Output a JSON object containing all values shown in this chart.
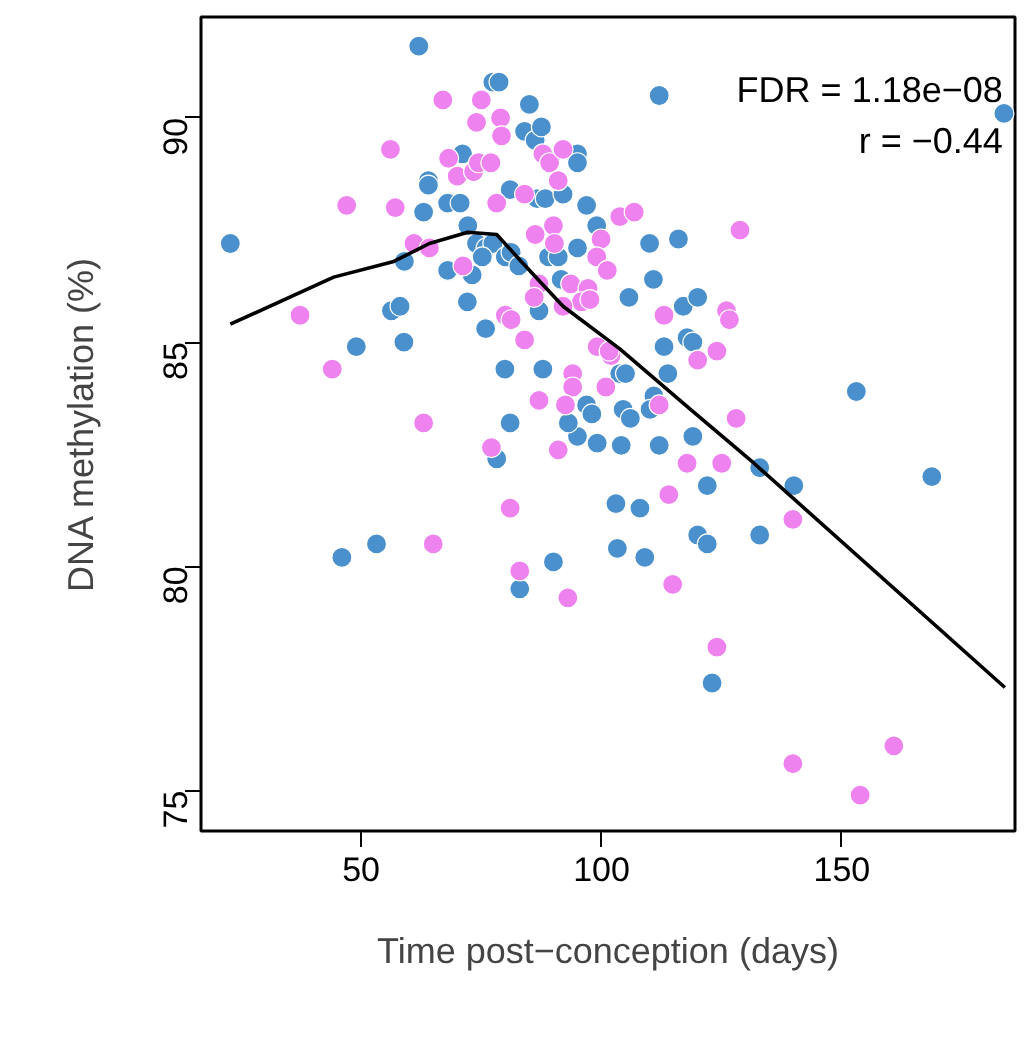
{
  "chart_data": {
    "type": "scatter",
    "xlabel": "Time post−conception (days)",
    "ylabel": "DNA methylation (%)",
    "xlim": [
      16.7,
      186
    ],
    "ylim": [
      74.1,
      92.25
    ],
    "xticks": [
      50,
      100,
      150
    ],
    "yticks": [
      75,
      80,
      85,
      90
    ],
    "grid": false,
    "marker": "circle",
    "annotations": [
      "FDR = 1.18e−08",
      "r = −0.44"
    ],
    "series": [
      {
        "color": "#4a90cc",
        "x": [
          22.8,
          62,
          77.4,
          78.7,
          85,
          84,
          86.2,
          87.5,
          71.1,
          64,
          64,
          63,
          68,
          70.6,
          72.2,
          81,
          86.6,
          88.3,
          92,
          96.9,
          99,
          59,
          74,
          76,
          77.4,
          75.2,
          80,
          81.2,
          82.8,
          89,
          91,
          91.6,
          95,
          56.3,
          58.1,
          49,
          58.9,
          68,
          73.1,
          72.1,
          75.9,
          79.9,
          87.8,
          87,
          81,
          96.9,
          98,
          103.8,
          112,
          183.7,
          95,
          95,
          110,
          116,
          105.7,
          110.8,
          117,
          120,
          113,
          117.8,
          119,
          105,
          113.8,
          153,
          104.5,
          110.9,
          110.1,
          106,
          95,
          99.1,
          104.1,
          112,
          119,
          132.9,
          140,
          168.7,
          122,
          103,
          108,
          120,
          122,
          132.9,
          109,
          123,
          93.1,
          78.2,
          46,
          53.2,
          90,
          83,
          103.3
        ],
        "values": [
          87.2,
          91.6,
          90.8,
          90.8,
          90.3,
          89.7,
          89.5,
          89.8,
          89.2,
          88.6,
          88.5,
          87.9,
          88.1,
          88.1,
          87.6,
          88.4,
          88.2,
          88.2,
          88.3,
          88.05,
          87.6,
          86.8,
          87.2,
          87.1,
          87.2,
          86.9,
          86.9,
          87,
          86.7,
          86.9,
          86.9,
          86.4,
          87.1,
          85.7,
          85.8,
          84.9,
          85,
          86.6,
          86.5,
          85.9,
          85.3,
          84.4,
          84.4,
          85.7,
          83.2,
          83.6,
          83.4,
          84.3,
          90.5,
          90.1,
          89.2,
          89,
          87.2,
          87.3,
          86,
          86.4,
          85.8,
          86,
          84.9,
          85.1,
          85,
          84.3,
          84.3,
          83.9,
          83.5,
          83.8,
          83.5,
          83.3,
          82.9,
          82.75,
          82.7,
          82.7,
          82.9,
          82.2,
          81.8,
          82,
          81.8,
          81.4,
          81.3,
          80.7,
          80.5,
          80.7,
          80.2,
          77.4,
          83.2,
          82.4,
          80.2,
          80.5,
          80.1,
          79.5,
          80.4
        ]
      },
      {
        "color": "#ee82ee",
        "x": [
          67,
          75,
          74,
          79,
          79.2,
          56.1,
          68.2,
          70,
          73.4,
          74.4,
          77,
          47,
          57.1,
          78.2,
          84,
          87.8,
          89.2,
          92,
          91,
          90,
          61,
          64.2,
          71.2,
          86.2,
          90.2,
          99.9,
          99,
          101.2,
          93.6,
          97.2,
          95.8,
          87,
          86,
          92,
          37.3,
          80,
          81.2,
          84,
          44,
          99.1,
          102,
          100.9,
          94,
          94,
          92.5,
          87,
          63,
          103.8,
          106.8,
          128.8,
          97.6,
          113,
          126,
          126.6,
          101.6,
          120,
          124,
          112,
          128,
          117.8,
          125,
          114,
          139.8,
          114.8,
          124,
          139.8,
          160.8,
          153.8,
          77.1,
          91,
          81,
          65,
          83,
          93
        ],
        "values": [
          90.4,
          90.4,
          89.9,
          90,
          89.6,
          89.3,
          89.1,
          88.7,
          88.8,
          89,
          89,
          88.05,
          88,
          88.1,
          88.3,
          89.2,
          89,
          89.3,
          88.6,
          87.6,
          87.2,
          87.1,
          86.7,
          87.4,
          87.2,
          87.3,
          86.9,
          86.6,
          86.3,
          86.2,
          85.9,
          86.3,
          86,
          85.8,
          85.6,
          85.6,
          85.5,
          85.05,
          84.4,
          84.9,
          84.7,
          84,
          84.3,
          84,
          83.6,
          83.7,
          83.2,
          87.8,
          87.9,
          87.5,
          85.95,
          85.6,
          85.7,
          85.5,
          84.8,
          84.6,
          84.8,
          83.6,
          83.3,
          82.3,
          82.3,
          81.6,
          81.05,
          79.6,
          78.2,
          75.6,
          76,
          74.9,
          82.65,
          82.6,
          81.3,
          80.5,
          79.9,
          79.3
        ]
      },
      {
        "type": "line",
        "color": "#000000",
        "line_style": "solid",
        "marker": "none",
        "x": [
          22.8,
          44.3,
          56.8,
          64.2,
          72.2,
          78.2,
          83.3,
          92,
          103.8,
          118.5,
          131.7,
          183.9
        ],
        "values": [
          85.4,
          86.45,
          86.8,
          87.2,
          87.45,
          87.4,
          86.8,
          85.8,
          84.85,
          83.5,
          82.3,
          77.3
        ]
      }
    ]
  }
}
